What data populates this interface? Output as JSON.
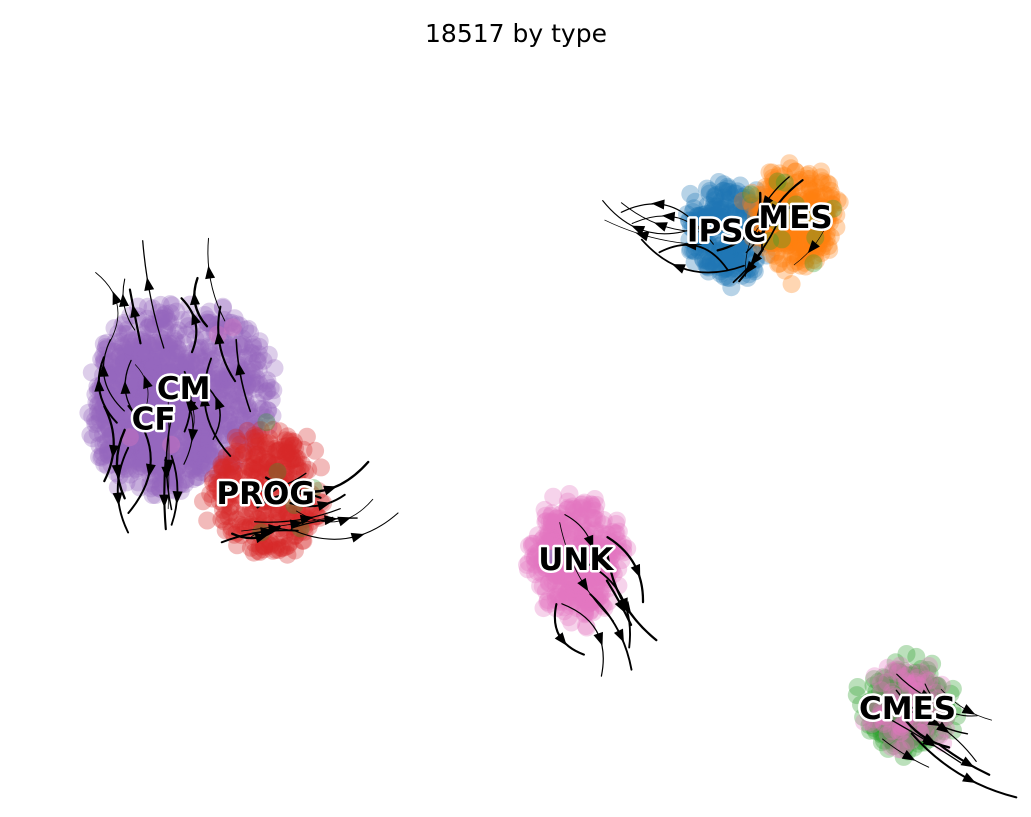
{
  "chart_data": {
    "type": "scatter",
    "title": "18517 by type",
    "xlabel": "",
    "ylabel": "",
    "axes_visible": false,
    "grid": false,
    "legend": "on data",
    "overlay": "velocity streamlines with arrowheads",
    "series": [
      {
        "name": "CM",
        "label_text": "CM",
        "color": "#9467bd",
        "center": [
          -8.2,
          2.4
        ],
        "spread": [
          2.3,
          2.2
        ]
      },
      {
        "name": "CF",
        "label_text": "CF",
        "color": "#9467bd",
        "center": [
          -8.9,
          1.7
        ],
        "spread": [
          1.6,
          1.9
        ]
      },
      {
        "name": "PROG",
        "label_text": "PROG",
        "color": "#d62728",
        "center": [
          -6.3,
          0.0
        ],
        "spread": [
          1.4,
          1.6
        ]
      },
      {
        "name": "IPSC",
        "label_text": "IPSC",
        "color": "#1f77b4",
        "center": [
          4.4,
          6.0
        ],
        "spread": [
          1.0,
          1.2
        ]
      },
      {
        "name": "MES",
        "label_text": "MES",
        "color": "#ff7f0e",
        "center": [
          6.0,
          6.3
        ],
        "spread": [
          1.1,
          1.3
        ]
      },
      {
        "name": "UNK",
        "label_text": "UNK",
        "color": "#e377c2",
        "center": [
          0.9,
          -1.5
        ],
        "spread": [
          1.1,
          1.5
        ]
      },
      {
        "name": "CMES",
        "label_text": "CMES",
        "color": "#2ca02c",
        "center": [
          8.6,
          -4.9
        ],
        "spread": [
          1.1,
          1.1
        ]
      }
    ],
    "xlim": [
      -12,
      11
    ],
    "ylim": [
      -7,
      10
    ]
  }
}
